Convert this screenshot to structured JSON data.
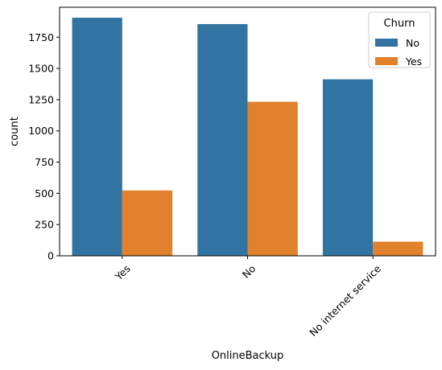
{
  "chart_data": {
    "type": "bar",
    "xlabel": "OnlineBackup",
    "ylabel": "count",
    "categories": [
      "Yes",
      "No",
      "No internet service"
    ],
    "series": [
      {
        "name": "No",
        "values": [
          1906,
          1855,
          1413
        ],
        "color": "#3274a1"
      },
      {
        "name": "Yes",
        "values": [
          523,
          1233,
          113
        ],
        "color": "#e1812c"
      }
    ],
    "ylim": [
      0,
      1990
    ],
    "yticks": [
      0,
      250,
      500,
      750,
      1000,
      1250,
      1500,
      1750
    ],
    "ytick_labels": [
      "0",
      "250",
      "500",
      "750",
      "1000",
      "1250",
      "1500",
      "1750"
    ],
    "grid": false,
    "legend": {
      "title": "Churn",
      "placement": "top-right",
      "entries": [
        "No",
        "Yes"
      ]
    },
    "xtick_rotation_deg": 45
  }
}
